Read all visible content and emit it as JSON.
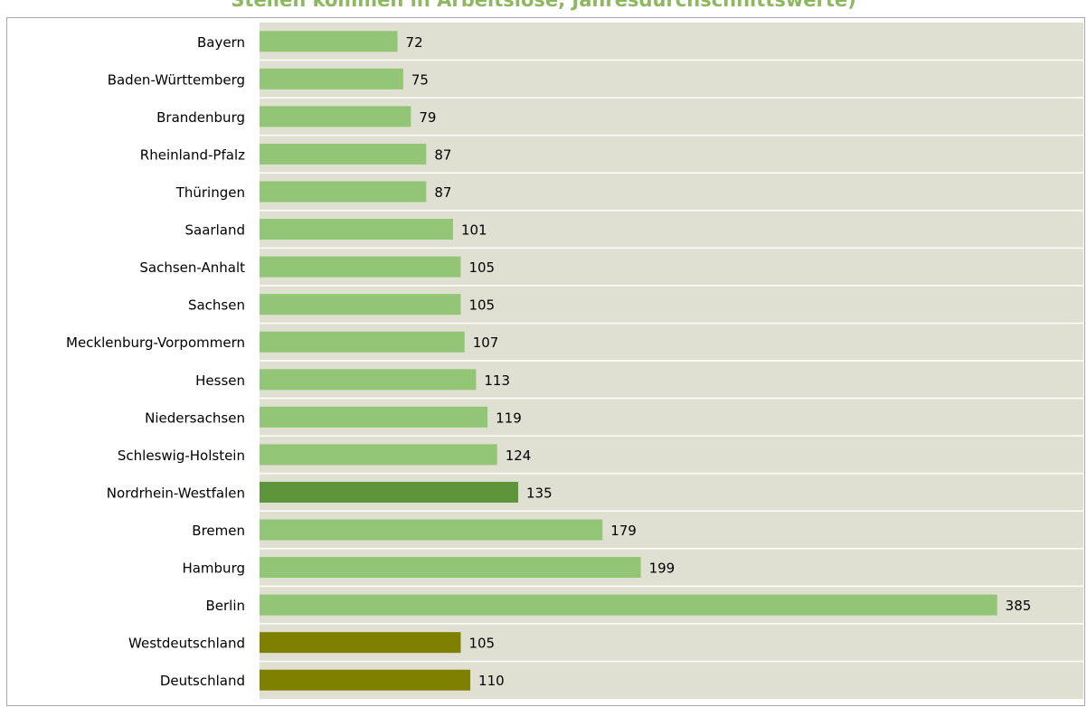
{
  "title": "Stellen kommen in Arbeitslose, Jahresdurchschnittswerte)",
  "colors": {
    "plot_background": "#e0e0d2",
    "bar_default": "#92c575",
    "bar_highlight": "#5e943a",
    "bar_aggregate": "#808000",
    "title_color": "#8db860"
  },
  "chart_data": {
    "type": "bar",
    "orientation": "horizontal",
    "categories": [
      "Bayern",
      "Baden-Württemberg",
      "Brandenburg",
      "Rheinland-Pfalz",
      "Thüringen",
      "Saarland",
      "Sachsen-Anhalt",
      "Sachsen",
      "Mecklenburg-Vorpommern",
      "Hessen",
      "Niedersachsen",
      "Schleswig-Holstein",
      "Nordrhein-Westfalen",
      "Bremen",
      "Hamburg",
      "Berlin",
      "Westdeutschland",
      "Deutschland"
    ],
    "values": [
      72,
      75,
      79,
      87,
      87,
      101,
      105,
      105,
      107,
      113,
      119,
      124,
      135,
      179,
      199,
      385,
      105,
      110
    ],
    "bar_color_keys": [
      "bar_default",
      "bar_default",
      "bar_default",
      "bar_default",
      "bar_default",
      "bar_default",
      "bar_default",
      "bar_default",
      "bar_default",
      "bar_default",
      "bar_default",
      "bar_default",
      "bar_highlight",
      "bar_default",
      "bar_default",
      "bar_default",
      "bar_aggregate",
      "bar_aggregate"
    ],
    "xlim": [
      0,
      430
    ],
    "xlabel": "",
    "ylabel": "",
    "grid": false,
    "legend": "none"
  }
}
